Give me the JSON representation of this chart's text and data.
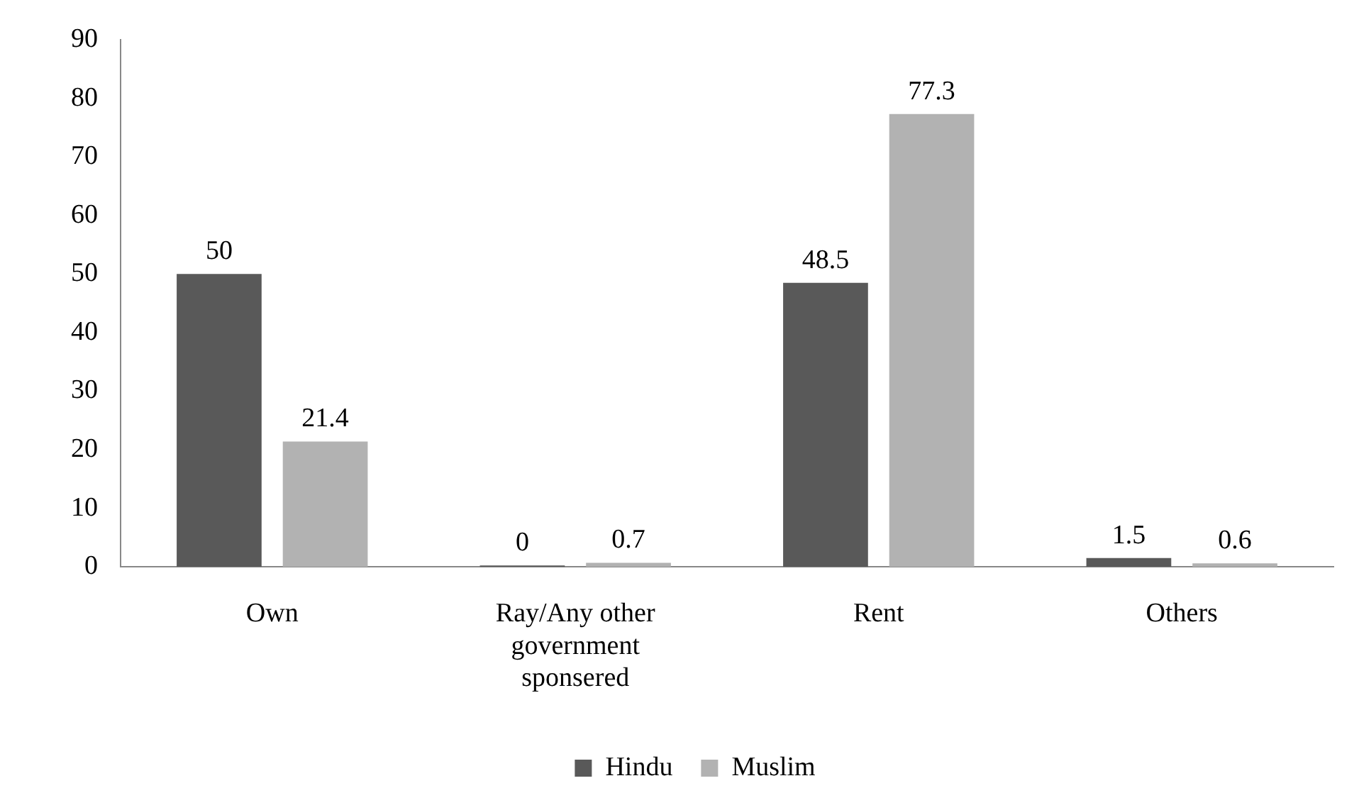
{
  "chart_data": {
    "type": "bar",
    "categories": [
      "Own",
      "Ray/Any other government sponsered",
      "Rent",
      "Others"
    ],
    "series": [
      {
        "name": "Hindu",
        "color": "#595959",
        "values": [
          50,
          0,
          48.5,
          1.5
        ]
      },
      {
        "name": "Muslim",
        "color": "#b2b2b2",
        "values": [
          21.4,
          0.7,
          77.3,
          0.6
        ]
      }
    ],
    "ylim": [
      0,
      90
    ],
    "yticks": [
      0,
      10,
      20,
      30,
      40,
      50,
      60,
      70,
      80,
      90
    ],
    "grid": false,
    "legend": "bottom",
    "data_labels": true
  }
}
